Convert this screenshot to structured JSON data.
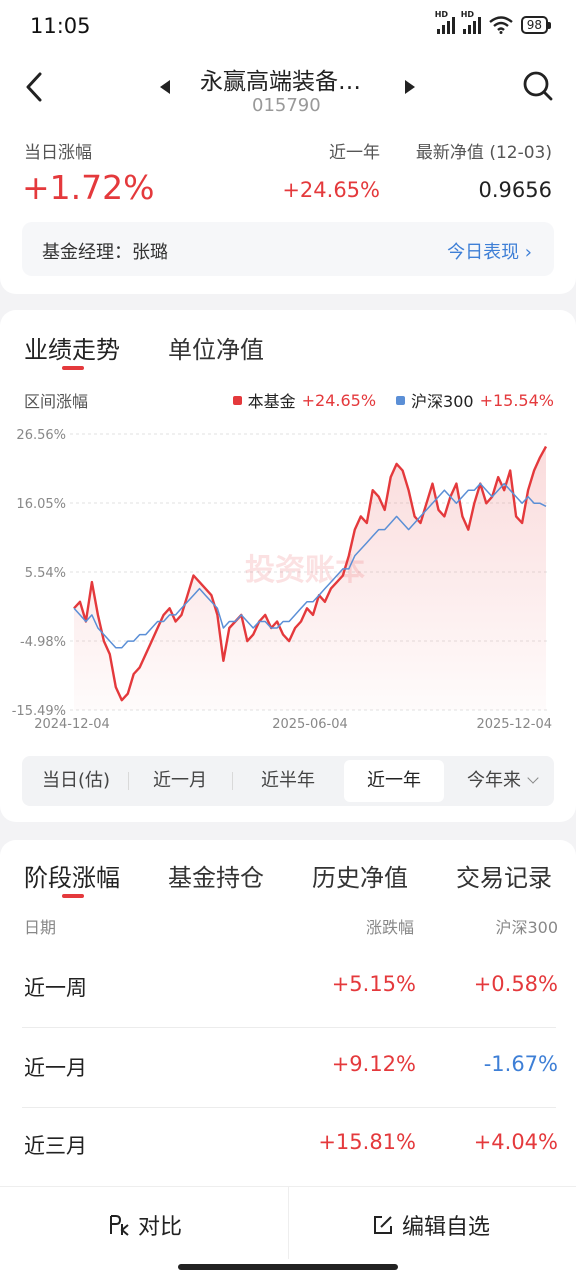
{
  "status_bar": {
    "time": "11:05",
    "battery": "98"
  },
  "header": {
    "fund_name": "永赢高端装备…",
    "fund_code": "015790"
  },
  "summary": {
    "day_change_label": "当日涨幅",
    "day_change": "+1.72%",
    "year_label": "近一年",
    "year_change": "+24.65%",
    "nav_label": "最新净值 (12-03)",
    "nav_value": "0.9656"
  },
  "manager": {
    "label": "基金经理：张璐",
    "link": "今日表现 ›"
  },
  "chart_tabs": [
    "业绩走势",
    "单位净值"
  ],
  "chart_section": {
    "range_label": "区间涨幅",
    "legend_fund_name": "本基金",
    "legend_fund_value": "+24.65%",
    "legend_bench_name": "沪深300",
    "legend_bench_value": "+15.54%",
    "watermark": "投资账本"
  },
  "chart_data": {
    "type": "line",
    "y_ticks": [
      "26.56%",
      "16.05%",
      "5.54%",
      "-4.98%",
      "-15.49%"
    ],
    "y_tick_values": [
      26.56,
      16.05,
      5.54,
      -4.98,
      -15.49
    ],
    "ylim": [
      -15.49,
      26.56
    ],
    "x_ticks": [
      "2024-12-04",
      "2025-06-04",
      "2025-12-04"
    ],
    "series": [
      {
        "name": "本基金",
        "color": "#e4393c",
        "values": [
          0,
          1,
          -2,
          4,
          -1,
          -5,
          -7,
          -12,
          -14,
          -13,
          -10,
          -9,
          -7,
          -5,
          -3,
          -1,
          0,
          -2,
          -1,
          2,
          5,
          4,
          3,
          2,
          -1,
          -8,
          -3,
          -2,
          -1,
          -5,
          -4,
          -2,
          -1,
          -3,
          -2,
          -4,
          -5,
          -3,
          -2,
          0,
          -1,
          2,
          1,
          3,
          4,
          5,
          8,
          12,
          14,
          13,
          18,
          17,
          15,
          20,
          22,
          21,
          18,
          14,
          13,
          16,
          19,
          15,
          14,
          17,
          19,
          14,
          12,
          16,
          19,
          16,
          17,
          20,
          18,
          21,
          14,
          13,
          18,
          21,
          23,
          24.65
        ]
      },
      {
        "name": "沪深300",
        "color": "#5b8fd6",
        "values": [
          0,
          -1,
          -2,
          -1,
          -3,
          -4,
          -5,
          -6,
          -6,
          -5,
          -5,
          -4,
          -4,
          -3,
          -2,
          -2,
          -1,
          -1,
          0,
          1,
          2,
          3,
          2,
          1,
          0,
          -3,
          -2,
          -2,
          -1,
          -2,
          -3,
          -2,
          -2,
          -3,
          -3,
          -2,
          -2,
          -1,
          0,
          1,
          1,
          2,
          3,
          4,
          5,
          6,
          6,
          8,
          9,
          10,
          11,
          12,
          12,
          13,
          14,
          13,
          12,
          13,
          14,
          15,
          16,
          17,
          18,
          17,
          16,
          17,
          18,
          18,
          19,
          18,
          17,
          18,
          19,
          18,
          17,
          16,
          17,
          16,
          16,
          15.54
        ]
      }
    ]
  },
  "periods": [
    "当日(估)",
    "近一月",
    "近半年",
    "近一年",
    "今年来"
  ],
  "perf_tabs": [
    "阶段涨幅",
    "基金持仓",
    "历史净值",
    "交易记录"
  ],
  "perf_headers": {
    "date": "日期",
    "change": "涨跌幅",
    "bench": "沪深300"
  },
  "perf_rows": [
    {
      "period": "近一周",
      "change": "+5.15%",
      "bench": "+0.58%"
    },
    {
      "period": "近一月",
      "change": "+9.12%",
      "bench": "-1.67%"
    },
    {
      "period": "近三月",
      "change": "+15.81%",
      "bench": "+4.04%"
    }
  ],
  "bottom": {
    "compare": "对比",
    "edit_watch": "编辑自选"
  }
}
